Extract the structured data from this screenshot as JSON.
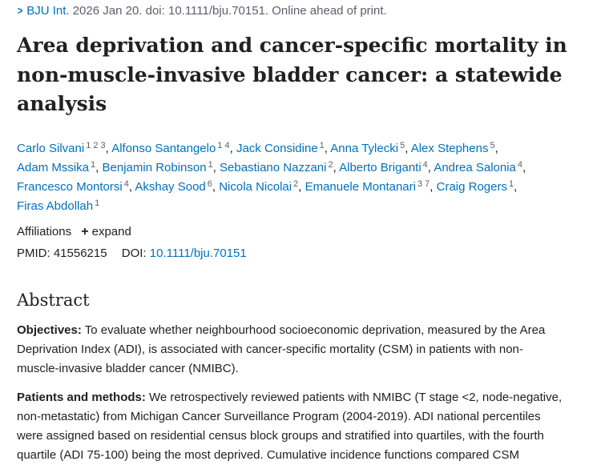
{
  "citation": {
    "journal": "BJU Int.",
    "details": "2026 Jan 20. doi: 10.1111/bju.70151. Online ahead of print."
  },
  "title_lines": [
    "Area deprivation and cancer-specific mortality in",
    "non-muscle-invasive bladder cancer: a statewide",
    "analysis"
  ],
  "authors": {
    "lines": [
      [
        {
          "name": "Carlo Silvani",
          "sup": "1 2 3"
        },
        {
          "name": "Alfonso Santangelo",
          "sup": "1 4"
        },
        {
          "name": "Jack Considine",
          "sup": "1"
        },
        {
          "name": "Anna Tylecki",
          "sup": "5"
        },
        {
          "name": "Alex Stephens",
          "sup": "5"
        }
      ],
      [
        {
          "name": "Adam Mssika",
          "sup": "1"
        },
        {
          "name": "Benjamin Robinson",
          "sup": "1"
        },
        {
          "name": "Sebastiano Nazzani",
          "sup": "2"
        },
        {
          "name": "Alberto Briganti",
          "sup": "4"
        },
        {
          "name": "Andrea Salonia",
          "sup": "4"
        }
      ],
      [
        {
          "name": "Francesco Montorsi",
          "sup": "4"
        },
        {
          "name": "Akshay Sood",
          "sup": "6"
        },
        {
          "name": "Nicola Nicolai",
          "sup": "2"
        },
        {
          "name": "Emanuele Montanari",
          "sup": "3 7"
        },
        {
          "name": "Craig Rogers",
          "sup": "1"
        }
      ],
      [
        {
          "name": "Firas Abdollah",
          "sup": "1"
        }
      ]
    ]
  },
  "affiliations": {
    "label": "Affiliations",
    "expand_label": "expand"
  },
  "ids": {
    "pmid_label": "PMID:",
    "pmid": "41556215",
    "doi_label": "DOI:",
    "doi": "10.1111/bju.70151"
  },
  "abstract": {
    "heading": "Abstract",
    "sections": [
      {
        "label": "Objectives:",
        "lines": [
          "To evaluate whether neighbourhood socioeconomic deprivation, measured by the Area",
          "Deprivation Index (ADI), is associated with cancer-specific mortality (CSM) in patients with non-",
          "muscle-invasive bladder cancer (NMIBC)."
        ]
      },
      {
        "label": "Patients and methods:",
        "lines": [
          "We retrospectively reviewed patients with NMIBC (T stage <2, node-negative,",
          "non-metastatic) from Michigan Cancer Surveillance Program (2004-2019). ADI national percentiles",
          "were assigned based on residential census block groups and stratified into quartiles, with the fourth",
          "quartile (ADI 75-100) being the most deprived. Cumulative incidence functions compared CSM"
        ]
      }
    ]
  }
}
